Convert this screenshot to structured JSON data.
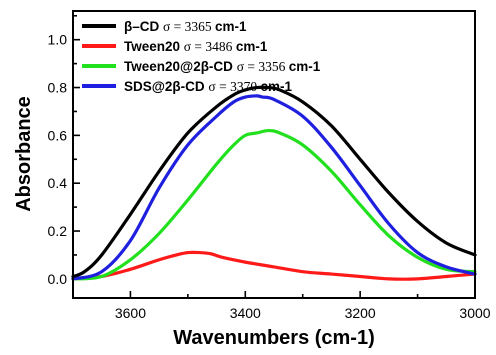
{
  "chart_data": {
    "type": "line",
    "title": "",
    "xlabel": "Wavenumbers (cm-1)",
    "ylabel": "Absorbance",
    "xlim": [
      3700,
      3000
    ],
    "ylim": [
      -0.08,
      1.12
    ],
    "x_ticks": [
      3600,
      3400,
      3200,
      3000
    ],
    "y_ticks": [
      0.0,
      0.2,
      0.4,
      0.6,
      0.8,
      1.0
    ],
    "x_tick_labels": [
      "3600",
      "3400",
      "3200",
      "3000"
    ],
    "y_tick_labels": [
      "0.0",
      "0.2",
      "0.4",
      "0.6",
      "0.8",
      "1.0"
    ],
    "grid": false,
    "legend_position": "top-left",
    "series": [
      {
        "name": "β–CD",
        "sigma_text": "σ = 3365",
        "unit_text": "cm-1",
        "color": "#000000",
        "x": [
          3700,
          3680,
          3650,
          3600,
          3550,
          3500,
          3450,
          3420,
          3400,
          3380,
          3360,
          3340,
          3300,
          3250,
          3200,
          3150,
          3100,
          3050,
          3000
        ],
        "y": [
          0.01,
          0.03,
          0.1,
          0.27,
          0.45,
          0.61,
          0.72,
          0.77,
          0.79,
          0.8,
          0.8,
          0.79,
          0.74,
          0.64,
          0.5,
          0.36,
          0.24,
          0.15,
          0.1
        ]
      },
      {
        "name": "Tween20",
        "sigma_text": "σ = 3486",
        "unit_text": "cm-1",
        "color": "#ff1a1a",
        "x": [
          3700,
          3650,
          3600,
          3550,
          3520,
          3500,
          3480,
          3460,
          3440,
          3400,
          3350,
          3300,
          3250,
          3200,
          3150,
          3100,
          3050,
          3000
        ],
        "y": [
          0.0,
          0.01,
          0.04,
          0.08,
          0.1,
          0.11,
          0.11,
          0.105,
          0.09,
          0.07,
          0.05,
          0.03,
          0.02,
          0.01,
          0.0,
          0.0,
          0.01,
          0.02
        ]
      },
      {
        "name": "Tween20@2β-CD",
        "sigma_text": "σ = 3356",
        "unit_text": "cm-1",
        "color": "#22e01e",
        "x": [
          3700,
          3650,
          3600,
          3550,
          3500,
          3450,
          3420,
          3400,
          3380,
          3360,
          3340,
          3300,
          3250,
          3200,
          3150,
          3100,
          3050,
          3000
        ],
        "y": [
          0.0,
          0.01,
          0.08,
          0.19,
          0.33,
          0.48,
          0.56,
          0.6,
          0.61,
          0.62,
          0.61,
          0.56,
          0.45,
          0.31,
          0.18,
          0.09,
          0.04,
          0.03
        ]
      },
      {
        "name": "SDS@2β-CD",
        "sigma_text": "σ = 3370",
        "unit_text": "cm-1",
        "color": "#1f1fe0",
        "x": [
          3700,
          3650,
          3600,
          3550,
          3500,
          3450,
          3420,
          3400,
          3380,
          3370,
          3350,
          3300,
          3250,
          3200,
          3150,
          3100,
          3050,
          3000
        ],
        "y": [
          0.0,
          0.03,
          0.16,
          0.38,
          0.56,
          0.68,
          0.74,
          0.76,
          0.765,
          0.76,
          0.75,
          0.68,
          0.55,
          0.39,
          0.23,
          0.11,
          0.05,
          0.02
        ]
      }
    ]
  }
}
